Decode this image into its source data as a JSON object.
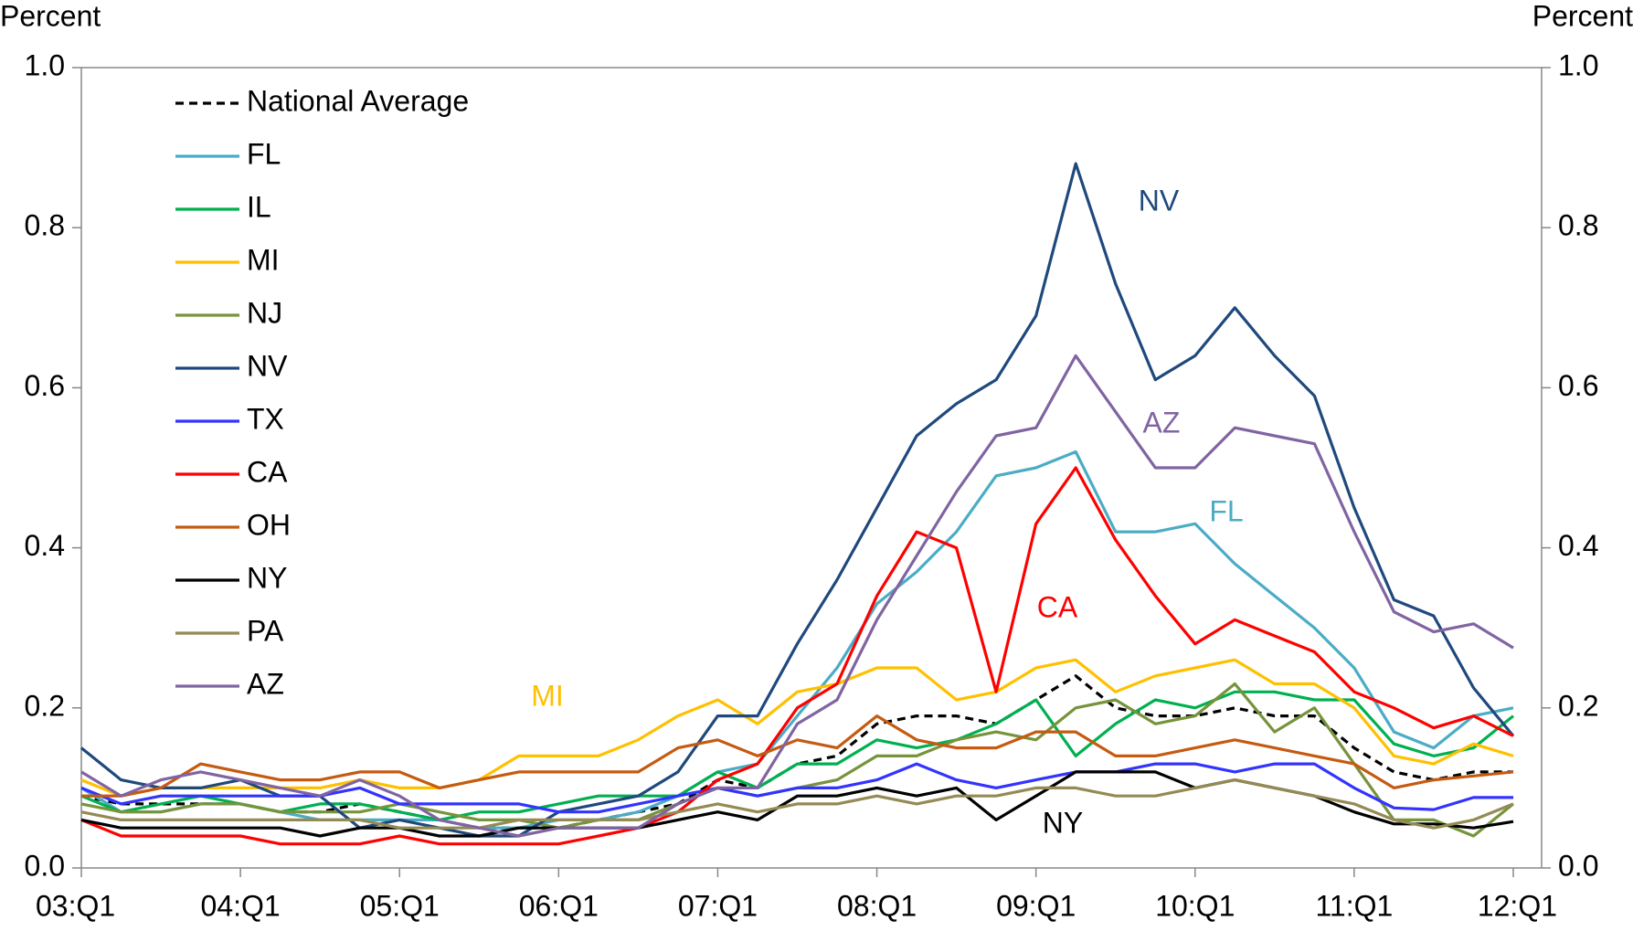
{
  "chart_data": {
    "type": "line",
    "y_label": "Percent",
    "y2_label": "Percent",
    "categories": [
      "03:Q1",
      null,
      null,
      null,
      "04:Q1",
      null,
      null,
      null,
      "05:Q1",
      null,
      null,
      null,
      "06:Q1",
      null,
      null,
      null,
      "07:Q1",
      null,
      null,
      null,
      "08:Q1",
      null,
      null,
      null,
      "09:Q1",
      null,
      null,
      null,
      "10:Q1",
      null,
      null,
      null,
      "11:Q1",
      null,
      null,
      null,
      "12:Q1"
    ],
    "ylim": [
      0,
      1
    ],
    "yticks": [
      {
        "value": 0,
        "label": "0.0"
      },
      0.2,
      0.4,
      0.6,
      0.8,
      {
        "value": 1,
        "label": "1.0"
      }
    ],
    "y2lim": [
      0,
      1
    ],
    "y2ticks": [
      {
        "value": 0,
        "label": "0.0"
      },
      0.2,
      0.4,
      0.6,
      0.8,
      {
        "value": 1,
        "label": "1.0"
      }
    ],
    "grid": false,
    "legend": "upper left",
    "series": [
      {
        "name": "National Average",
        "color": "#000000",
        "dashed": true,
        "values": [
          0.09,
          0.08,
          0.08,
          0.08,
          0.08,
          0.07,
          0.07,
          0.08,
          0.07,
          0.06,
          0.05,
          0.05,
          0.05,
          0.06,
          0.07,
          0.08,
          0.11,
          0.1,
          0.13,
          0.14,
          0.18,
          0.19,
          0.19,
          0.18,
          0.21,
          0.24,
          0.2,
          0.19,
          0.19,
          0.2,
          0.19,
          0.19,
          0.15,
          0.12,
          0.11,
          0.12,
          0.12
        ]
      },
      {
        "name": "FL",
        "color": "#4bacc6",
        "values": [
          0.1,
          0.07,
          0.07,
          0.08,
          0.08,
          0.07,
          0.06,
          0.06,
          0.06,
          0.06,
          0.05,
          0.05,
          0.06,
          0.06,
          0.07,
          0.09,
          0.12,
          0.13,
          0.19,
          0.25,
          0.33,
          0.37,
          0.42,
          0.49,
          0.5,
          0.52,
          0.42,
          0.42,
          0.43,
          0.38,
          0.34,
          0.3,
          0.25,
          0.17,
          0.15,
          0.19,
          0.2
        ]
      },
      {
        "name": "IL",
        "color": "#00b050",
        "values": [
          0.09,
          0.07,
          0.08,
          0.09,
          0.08,
          0.07,
          0.08,
          0.08,
          0.07,
          0.06,
          0.07,
          0.07,
          0.08,
          0.09,
          0.09,
          0.09,
          0.12,
          0.1,
          0.13,
          0.13,
          0.16,
          0.15,
          0.16,
          0.18,
          0.21,
          0.14,
          0.18,
          0.21,
          0.2,
          0.22,
          0.22,
          0.21,
          0.21,
          0.155,
          0.14,
          0.15,
          0.19
        ]
      },
      {
        "name": "MI",
        "color": "#ffc000",
        "values": [
          0.11,
          0.09,
          0.1,
          0.1,
          0.1,
          0.1,
          0.1,
          0.11,
          0.1,
          0.1,
          0.11,
          0.14,
          0.14,
          0.14,
          0.16,
          0.19,
          0.21,
          0.18,
          0.22,
          0.23,
          0.25,
          0.25,
          0.21,
          0.22,
          0.25,
          0.26,
          0.22,
          0.24,
          0.25,
          0.26,
          0.23,
          0.23,
          0.2,
          0.14,
          0.13,
          0.155,
          0.14
        ]
      },
      {
        "name": "NJ",
        "color": "#77933c",
        "values": [
          0.08,
          0.07,
          0.07,
          0.08,
          0.08,
          0.07,
          0.07,
          0.07,
          0.08,
          0.07,
          0.06,
          0.06,
          0.05,
          0.06,
          0.06,
          0.08,
          0.1,
          0.09,
          0.1,
          0.11,
          0.14,
          0.14,
          0.16,
          0.17,
          0.16,
          0.2,
          0.21,
          0.18,
          0.19,
          0.23,
          0.17,
          0.2,
          0.13,
          0.06,
          0.06,
          0.04,
          0.08
        ]
      },
      {
        "name": "NV",
        "color": "#1f497d",
        "values": [
          0.15,
          0.11,
          0.1,
          0.1,
          0.11,
          0.09,
          0.09,
          0.05,
          0.06,
          0.05,
          0.04,
          0.04,
          0.07,
          0.08,
          0.09,
          0.12,
          0.19,
          0.19,
          0.28,
          0.36,
          0.45,
          0.54,
          0.58,
          0.61,
          0.69,
          0.88,
          0.73,
          0.61,
          0.64,
          0.7,
          0.64,
          0.59,
          0.45,
          0.335,
          0.315,
          0.225,
          0.165
        ]
      },
      {
        "name": "TX",
        "color": "#3333ff",
        "values": [
          0.1,
          0.08,
          0.09,
          0.09,
          0.09,
          0.09,
          0.09,
          0.1,
          0.08,
          0.08,
          0.08,
          0.08,
          0.07,
          0.07,
          0.08,
          0.09,
          0.1,
          0.09,
          0.1,
          0.1,
          0.11,
          0.13,
          0.11,
          0.1,
          0.11,
          0.12,
          0.12,
          0.13,
          0.13,
          0.12,
          0.13,
          0.13,
          0.1,
          0.075,
          0.073,
          0.088,
          0.088
        ]
      },
      {
        "name": "CA",
        "color": "#ff0000",
        "values": [
          0.06,
          0.04,
          0.04,
          0.04,
          0.04,
          0.03,
          0.03,
          0.03,
          0.04,
          0.03,
          0.03,
          0.03,
          0.03,
          0.04,
          0.05,
          0.07,
          0.11,
          0.13,
          0.2,
          0.23,
          0.34,
          0.42,
          0.4,
          0.22,
          0.43,
          0.5,
          0.41,
          0.34,
          0.28,
          0.31,
          0.29,
          0.27,
          0.22,
          0.2,
          0.175,
          0.19,
          0.165
        ]
      },
      {
        "name": "OH",
        "color": "#c55a11",
        "values": [
          0.09,
          0.09,
          0.1,
          0.13,
          0.12,
          0.11,
          0.11,
          0.12,
          0.12,
          0.1,
          0.11,
          0.12,
          0.12,
          0.12,
          0.12,
          0.15,
          0.16,
          0.14,
          0.16,
          0.15,
          0.19,
          0.16,
          0.15,
          0.15,
          0.17,
          0.17,
          0.14,
          0.14,
          0.15,
          0.16,
          0.15,
          0.14,
          0.13,
          0.1,
          0.11,
          0.115,
          0.12
        ]
      },
      {
        "name": "NY",
        "color": "#000000",
        "values": [
          0.06,
          0.05,
          0.05,
          0.05,
          0.05,
          0.05,
          0.04,
          0.05,
          0.05,
          0.04,
          0.04,
          0.05,
          0.05,
          0.05,
          0.05,
          0.06,
          0.07,
          0.06,
          0.09,
          0.09,
          0.1,
          0.09,
          0.1,
          0.06,
          0.09,
          0.12,
          0.12,
          0.12,
          0.1,
          0.11,
          0.1,
          0.09,
          0.07,
          0.055,
          0.055,
          0.05,
          0.058
        ]
      },
      {
        "name": "PA",
        "color": "#948a54",
        "values": [
          0.07,
          0.06,
          0.06,
          0.06,
          0.06,
          0.06,
          0.06,
          0.06,
          0.05,
          0.05,
          0.05,
          0.06,
          0.06,
          0.06,
          0.06,
          0.07,
          0.08,
          0.07,
          0.08,
          0.08,
          0.09,
          0.08,
          0.09,
          0.09,
          0.1,
          0.1,
          0.09,
          0.09,
          0.1,
          0.11,
          0.1,
          0.09,
          0.08,
          0.06,
          0.05,
          0.06,
          0.08
        ]
      },
      {
        "name": "AZ",
        "color": "#8064a2",
        "values": [
          0.12,
          0.09,
          0.11,
          0.12,
          0.11,
          0.1,
          0.09,
          0.11,
          0.09,
          0.06,
          0.05,
          0.04,
          0.05,
          0.05,
          0.05,
          0.08,
          0.1,
          0.1,
          0.18,
          0.21,
          0.31,
          0.39,
          0.47,
          0.54,
          0.55,
          0.64,
          0.57,
          0.5,
          0.5,
          0.55,
          0.54,
          0.53,
          0.42,
          0.32,
          0.295,
          0.305,
          0.275
        ]
      }
    ],
    "annotations": [
      {
        "text": "NV",
        "color": "#1f497d"
      },
      {
        "text": "AZ",
        "color": "#8064a2"
      },
      {
        "text": "FL",
        "color": "#4bacc6"
      },
      {
        "text": "CA",
        "color": "#ff0000"
      },
      {
        "text": "MI",
        "color": "#ffc000"
      },
      {
        "text": "NY",
        "color": "#000000"
      }
    ]
  }
}
